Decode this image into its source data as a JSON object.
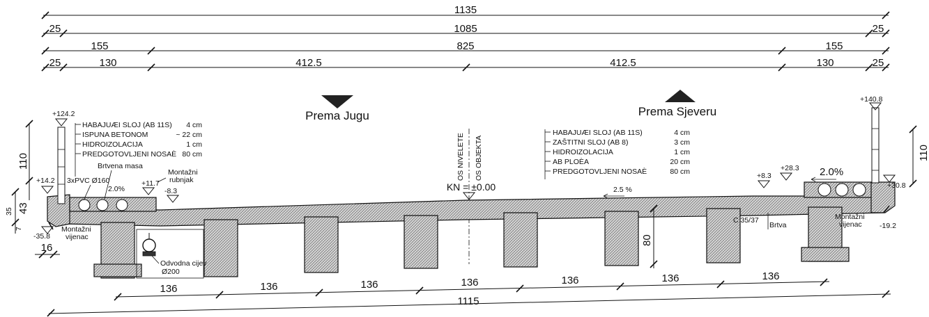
{
  "top_dimensions": {
    "row1": [
      "1135"
    ],
    "row2": [
      "25",
      "1085",
      "25"
    ],
    "row3": [
      "155",
      "825",
      "155"
    ],
    "row4": [
      "25",
      "130",
      "412.5",
      "412.5",
      "130",
      "25"
    ]
  },
  "directions": {
    "south": "Prema Jugu",
    "north": "Prema Sjeveru"
  },
  "layers_left": [
    {
      "name": "HABAJUÆI SLOJ (AB 11S)",
      "value": "4 cm"
    },
    {
      "name": "ISPUNA BETONOM",
      "value": "~ 22 cm"
    },
    {
      "name": "HIDROIZOLACIJA",
      "value": "1 cm"
    },
    {
      "name": "PREDGOTOVLJENI NOSAÈ",
      "value": "80 cm"
    }
  ],
  "layers_right": [
    {
      "name": "HABAJUÆI SLOJ (AB 11S)",
      "value": "4 cm"
    },
    {
      "name": "ZAŠTITNI SLOJ (AB 8)",
      "value": "3 cm"
    },
    {
      "name": "HIDROIZOLACIJA",
      "value": "1 cm"
    },
    {
      "name": "AB PLOÈA",
      "value": "20 cm"
    },
    {
      "name": "PREDGOTOVLJENI NOSAÈ",
      "value": "80 cm"
    }
  ],
  "axis": {
    "line1": "OS NIVELETE",
    "line2": "OS OBJEKTA",
    "kn": "KN = ±0.00"
  },
  "elevations": {
    "left_top": "+124.2",
    "left_curb": "+14.2",
    "left_bottom": "-35.8",
    "rubnjak_top": "+11.7",
    "rubnjak_low": "-8.3",
    "right_top": "+140.8",
    "right_a": "+8.3",
    "right_b": "+28.3",
    "right_c": "+30.8",
    "right_bottom": "-19.2"
  },
  "labels": {
    "pvc": "3xPVC Ø160",
    "brtvena_masa": "Brtvena masa",
    "montazni_rubnjak_1": "Montažni",
    "montazni_rubnjak_2": "rubnjak",
    "montazni_vijenac_1": "Montažni",
    "montazni_vijenac_2": "vijenac",
    "odvodna_1": "Odvodna cijev",
    "odvodna_2": "Ø200",
    "brtva": "Brtva",
    "concrete_class": "C 35/37",
    "slope_left": "2.0%",
    "slope_right": "2.0%",
    "slope_mid": "2.5 %"
  },
  "side_dimensions": {
    "left_110": "110",
    "left_43": "43",
    "left_small": "35",
    "left_7": "7",
    "left_16": "16",
    "right_110": "110",
    "girder_80": "80"
  },
  "bottom_dimensions": {
    "spacings": [
      "136",
      "136",
      "136",
      "136",
      "136",
      "136",
      "136"
    ],
    "total": "1115"
  }
}
